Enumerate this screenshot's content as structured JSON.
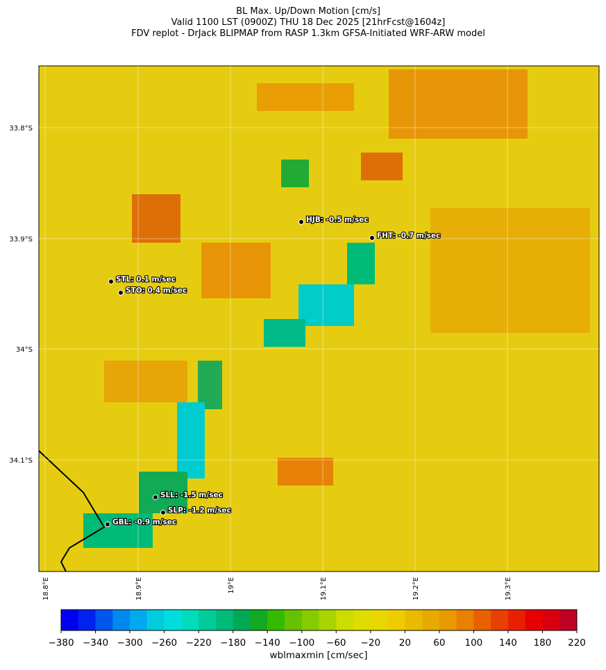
{
  "header": {
    "title": [
      "BL Max. Up/Down Motion [cm/s]",
      "Valid 1100 LST (0900Z) THU 18 Dec 2025 [21hrFcst@1604z]",
      "FDV replot - DrJack BLIPMAP from RASP 1.3km GFSA-Initiated WRF-ARW model"
    ]
  },
  "map": {
    "lat_labels": [
      "33.8°S",
      "33.9°S",
      "34°S",
      "34.1°S"
    ],
    "lon_labels": [
      "18.8°E",
      "18.9°E",
      "19°E",
      "19.1°E",
      "19.2°E",
      "19.3°E"
    ],
    "stations": [
      {
        "label": "HJB: -0.5 m/sec"
      },
      {
        "label": "FHT: -0.7 m/sec"
      },
      {
        "label": "STL: 0.1 m/sec"
      },
      {
        "label": "STO: 0.4 m/sec"
      },
      {
        "label": "SLL: -1.5 m/sec"
      },
      {
        "label": "SLP: -1.2 m/sec"
      },
      {
        "label": "GBL: -0.9 m/sec"
      }
    ]
  },
  "colorbar": {
    "label": "wblmaxmin [cm/sec]",
    "range": [
      -380,
      220
    ],
    "colors": [
      "#0000f0",
      "#0022f0",
      "#0055ee",
      "#0088ee",
      "#00aaee",
      "#00ccdd",
      "#00dddd",
      "#00ddbb",
      "#00cc99",
      "#00bb77",
      "#00aa55",
      "#11aa22",
      "#33bb00",
      "#66c200",
      "#88cc00",
      "#aad400",
      "#ccdd00",
      "#dddd00",
      "#e8d800",
      "#eecc00",
      "#e8bb00",
      "#e8aa00",
      "#e89900",
      "#e88000",
      "#e86000",
      "#e84000",
      "#e82000",
      "#e80000",
      "#d80010",
      "#c00020"
    ],
    "ticks": [
      {
        "value": -380,
        "label": "−380"
      },
      {
        "value": -340,
        "label": "−340"
      },
      {
        "value": -300,
        "label": "−300"
      },
      {
        "value": -260,
        "label": "−260"
      },
      {
        "value": -220,
        "label": "−220"
      },
      {
        "value": -180,
        "label": "−180"
      },
      {
        "value": -140,
        "label": "−140"
      },
      {
        "value": -100,
        "label": "−100"
      },
      {
        "value": -60,
        "label": "−60"
      },
      {
        "value": -20,
        "label": "−20"
      },
      20,
      60,
      100,
      140,
      180,
      220
    ]
  }
}
